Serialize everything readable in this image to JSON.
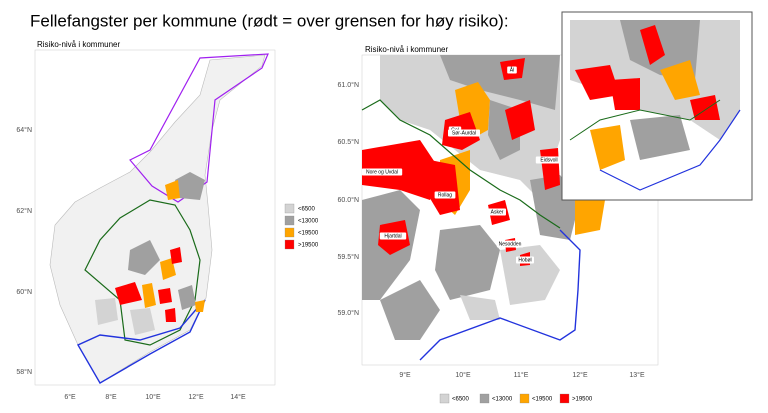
{
  "title": "Fellefangster per kommune (rødt = over grensen for høy risiko):",
  "legend": [
    {
      "label": "<6500",
      "color": "#d3d3d3"
    },
    {
      "label": "<13000",
      "color": "#a0a0a0"
    },
    {
      "label": "<19500",
      "color": "#ffa500"
    },
    {
      "label": ">19500",
      "color": "#ff0000"
    }
  ],
  "maps": [
    {
      "subtitle": "Risiko-nivå i kommuner",
      "lat_labels": [
        "64°N",
        "62°N",
        "60°N",
        "58°N"
      ],
      "lon_labels": [
        "6°E",
        "8°E",
        "10°E",
        "12°E",
        "14°E"
      ]
    },
    {
      "subtitle": "Risiko-nivå i kommuner",
      "lat_labels": [
        "61.0°N",
        "60.5°N",
        "60.0°N",
        "59.5°N",
        "59.0°N"
      ],
      "lon_labels": [
        "9°E",
        "10°E",
        "11°E",
        "12°E",
        "13°E"
      ],
      "place_labels": [
        "Ål",
        "Gol",
        "Sør-Aurdal",
        "Nore og Uvdal",
        "Rollag",
        "Eidsvoll",
        "Asker",
        "Hjartdal",
        "Nesodden",
        "Hobøl"
      ]
    }
  ]
}
